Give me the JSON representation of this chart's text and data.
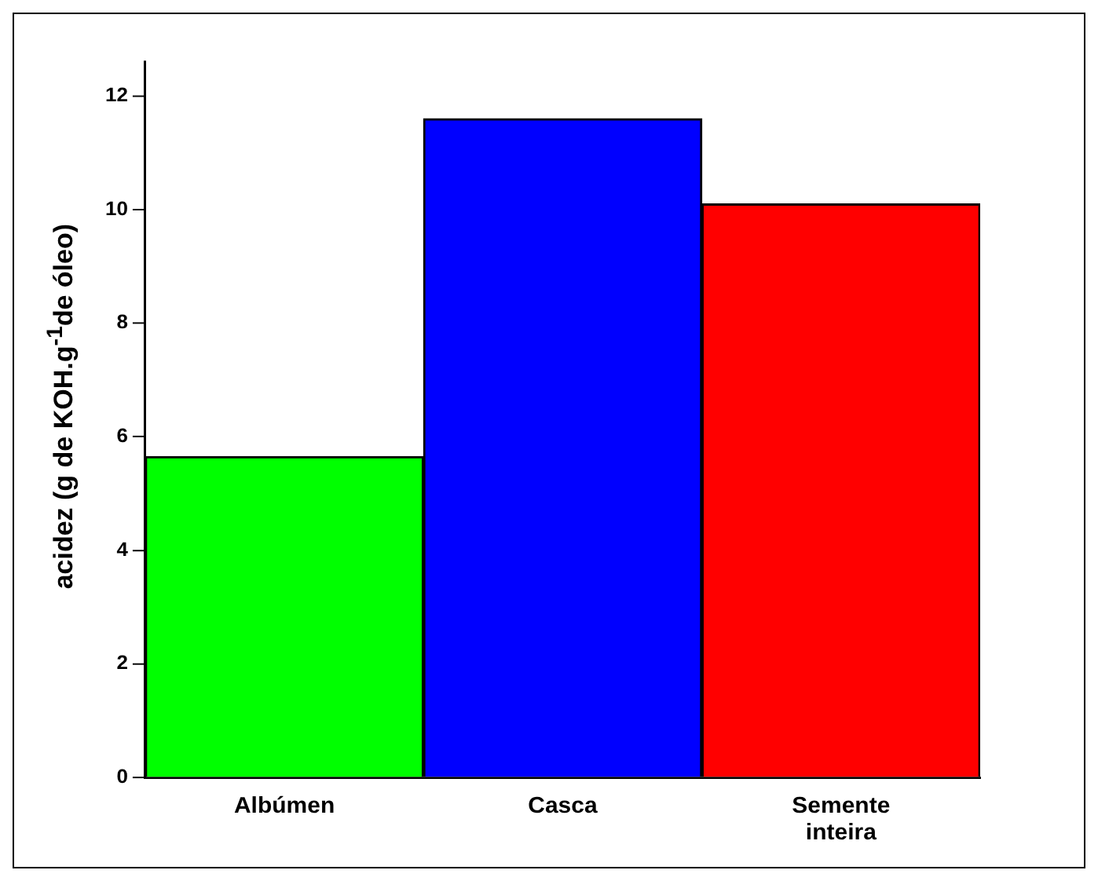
{
  "chart_data": {
    "type": "bar",
    "ylabel": "acidez (g de KOH.g$^{-1}$de óleo)",
    "categories": [
      "Albúmen",
      "Casca",
      "Semente inteira"
    ],
    "values": [
      5.65,
      11.6,
      10.1
    ],
    "colors": [
      "#00ff00",
      "#0000ff",
      "#ff0000"
    ],
    "ylim": [
      0,
      12.6
    ],
    "yticks": [
      0,
      2,
      4,
      6,
      8,
      10,
      12
    ],
    "grid": false,
    "legend": false
  }
}
